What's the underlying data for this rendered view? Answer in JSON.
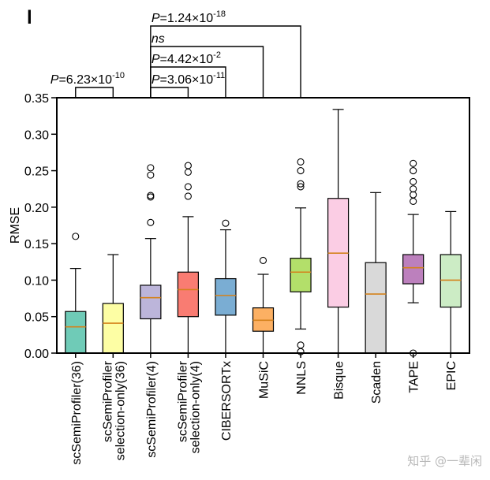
{
  "panel_label": "l",
  "chart_data": {
    "type": "boxplot",
    "ylabel": "RMSE",
    "ylim": [
      0,
      0.35
    ],
    "yticks": [
      "0.00",
      "0.05",
      "0.10",
      "0.15",
      "0.20",
      "0.25",
      "0.30",
      "0.35"
    ],
    "boxes": [
      {
        "label": "scSemiProfiler(36)",
        "color": "#6fcbb7",
        "min": 0.0,
        "q1": 0.0,
        "median": 0.036,
        "q3": 0.057,
        "max": 0.116,
        "outliers": [
          0.16
        ]
      },
      {
        "label": "scSemiProfiler selection-only(36)",
        "color": "#fdfea4",
        "min": 0.0,
        "q1": 0.0,
        "median": 0.041,
        "q3": 0.068,
        "max": 0.135,
        "outliers": []
      },
      {
        "label": "scSemiProfiler(4)",
        "color": "#bcb5da",
        "min": 0.0,
        "q1": 0.047,
        "median": 0.076,
        "q3": 0.093,
        "max": 0.157,
        "outliers": [
          0.179,
          0.214,
          0.216,
          0.244,
          0.254
        ]
      },
      {
        "label": "scSemiProfiler selection-only(4)",
        "color": "#f97c72",
        "min": 0.0,
        "q1": 0.05,
        "median": 0.087,
        "q3": 0.111,
        "max": 0.187,
        "outliers": [
          0.215,
          0.228,
          0.248,
          0.257
        ]
      },
      {
        "label": "CIBERSORTx",
        "color": "#7aadd3",
        "min": 0.0,
        "q1": 0.052,
        "median": 0.079,
        "q3": 0.102,
        "max": 0.169,
        "outliers": [
          0.178
        ]
      },
      {
        "label": "MuSiC",
        "color": "#fcb063",
        "min": 0.0,
        "q1": 0.03,
        "median": 0.045,
        "q3": 0.062,
        "max": 0.108,
        "outliers": [
          0.127
        ]
      },
      {
        "label": "NNLS",
        "color": "#b3df6a",
        "min": 0.033,
        "q1": 0.084,
        "median": 0.111,
        "q3": 0.13,
        "max": 0.199,
        "outliers": [
          0.002,
          0.011,
          0.228,
          0.232,
          0.25,
          0.262
        ]
      },
      {
        "label": "Bisque",
        "color": "#fbcde4",
        "min": 0.0,
        "q1": 0.063,
        "median": 0.137,
        "q3": 0.212,
        "max": 0.334,
        "outliers": []
      },
      {
        "label": "Scaden",
        "color": "#d9d9d9",
        "min": 0.0,
        "q1": 0.0,
        "median": 0.081,
        "q3": 0.124,
        "max": 0.22,
        "outliers": []
      },
      {
        "label": "TAPE",
        "color": "#bc80bd",
        "min": 0.069,
        "q1": 0.095,
        "median": 0.117,
        "q3": 0.135,
        "max": 0.19,
        "outliers": [
          0.0,
          0.208,
          0.217,
          0.225,
          0.235,
          0.25,
          0.26
        ]
      },
      {
        "label": "EPIC",
        "color": "#ccecc5",
        "min": 0.0,
        "q1": 0.063,
        "median": 0.1,
        "q3": 0.135,
        "max": 0.194,
        "outliers": []
      }
    ],
    "comparisons": [
      {
        "left": 0,
        "right": 1,
        "label": "P=6.23×10",
        "exponent": "-10"
      },
      {
        "left": 2,
        "right": 3,
        "label": "P=3.06×10",
        "exponent": "-11"
      },
      {
        "left": 2,
        "right": 4,
        "label": "P=4.42×10",
        "exponent": "-2"
      },
      {
        "left": 2,
        "right": 5,
        "label": "ns",
        "exponent": ""
      },
      {
        "left": 2,
        "right": 6,
        "label": "P=1.24×10",
        "exponent": "-18"
      }
    ]
  },
  "watermark": "知乎 @一辈闲"
}
